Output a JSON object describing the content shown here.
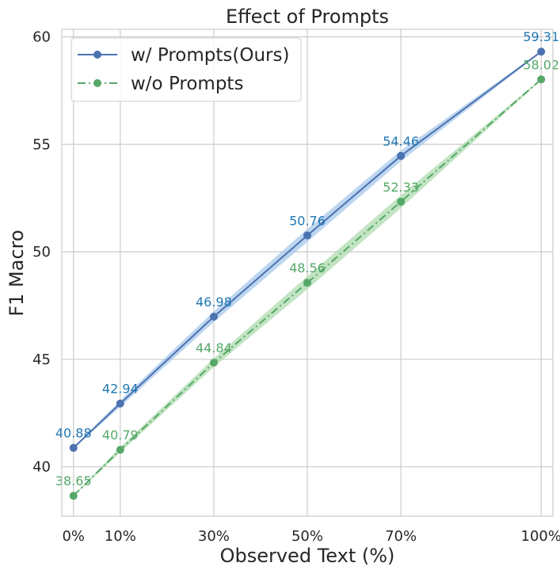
{
  "chart_data": {
    "type": "line",
    "title": "Effect of Prompts",
    "xlabel": "Observed Text (%)",
    "ylabel": "F1 Macro",
    "x": [
      0,
      10,
      30,
      50,
      70,
      100
    ],
    "x_tick_labels": [
      "0%",
      "10%",
      "30%",
      "50%",
      "70%",
      "100%"
    ],
    "xlim": [
      -2.5,
      102.5
    ],
    "ylim": [
      37.7,
      60.35
    ],
    "y_ticks": [
      40,
      45,
      50,
      55,
      60
    ],
    "y_tick_labels": [
      "40",
      "45",
      "50",
      "55",
      "60"
    ],
    "grid": true,
    "legend_position": "top-left",
    "series": [
      {
        "name": "w/ Prompts(Ours)",
        "values": [
          40.88,
          42.94,
          46.98,
          50.76,
          54.46,
          59.31
        ],
        "labels": [
          "40.88",
          "42.94",
          "46.98",
          "50.76",
          "54.46",
          "59.31"
        ],
        "band": [
          0.03,
          0.15,
          0.25,
          0.3,
          0.25,
          0.03
        ],
        "line_style": "solid",
        "color": "#4c72b0",
        "band_color": "#a1c4ea",
        "label_color": "#1f77b4"
      },
      {
        "name": "w/o Prompts",
        "values": [
          38.65,
          40.79,
          44.84,
          48.56,
          52.33,
          58.02
        ],
        "labels": [
          "38.65",
          "40.79",
          "44.84",
          "48.56",
          "52.33",
          "58.02"
        ],
        "band": [
          0.03,
          0.12,
          0.2,
          0.3,
          0.3,
          0.03
        ],
        "line_style": "dashdot",
        "color": "#55a868",
        "band_color": "#a8d8a8",
        "label_color": "#55a868"
      }
    ]
  }
}
